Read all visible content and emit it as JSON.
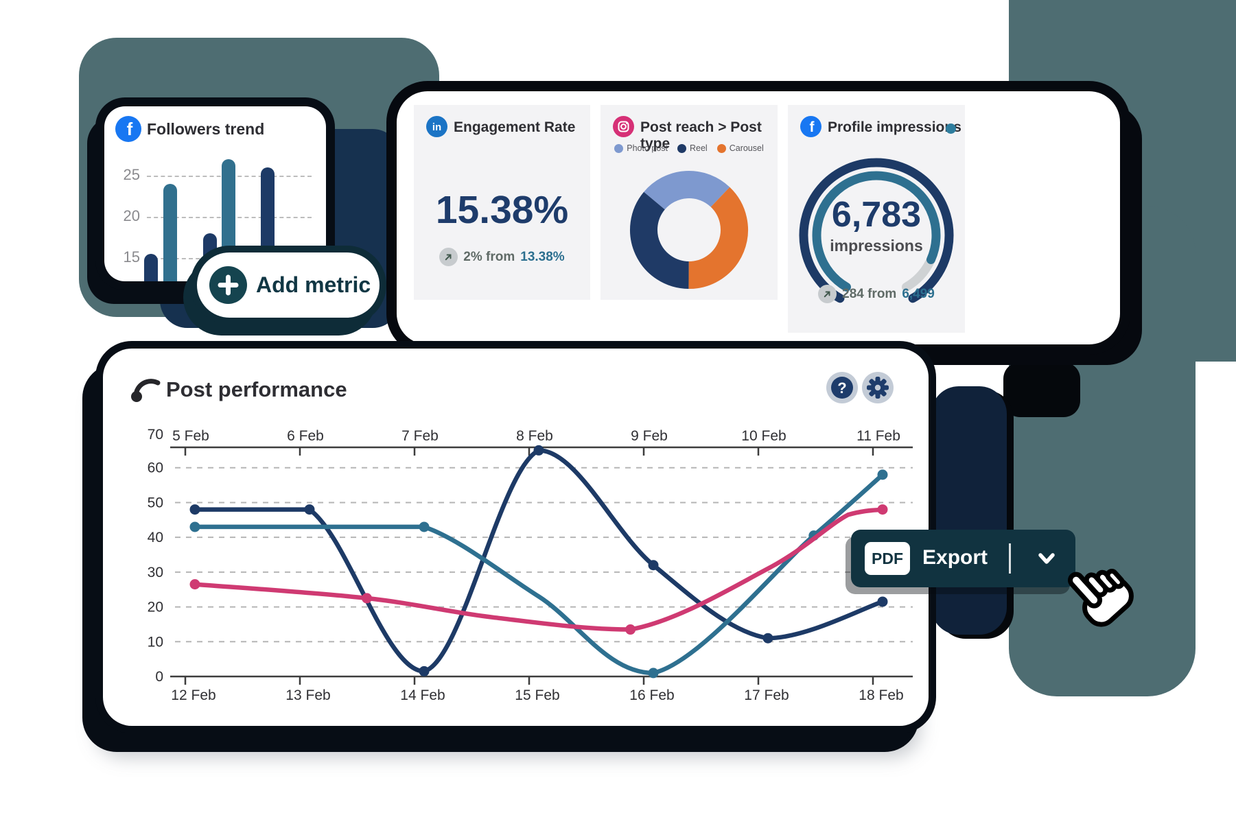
{
  "colors": {
    "slate": "#4e6d72",
    "navy_shape_left": "#16314f",
    "navy_shape_right": "#10223a",
    "shadow_dark": "#070d15",
    "navy_line": "#1d3a66",
    "teal_line": "#2e7090",
    "pink_line": "#cf3a72",
    "accent_navy_text": "#1e3c6b",
    "accent_teal_text": "#2c6f8f",
    "facebook_blue": "#1877f2",
    "linkedin_blue": "#1b74c5",
    "instagram_pink": "#d63076",
    "bar_navy": "#1d3a66",
    "bar_teal": "#31708e",
    "gauge_gray": "#cfd2d4",
    "export_bg": "#113340",
    "pill_shadow": "#0e2c38"
  },
  "followers": {
    "title": "Followers trend",
    "y_labels": [
      "25",
      "20",
      "15"
    ],
    "bars": [
      {
        "value": 15.5,
        "color": "#1d3a66"
      },
      {
        "value": 24,
        "color": "#31708e"
      },
      {
        "value": 18,
        "color": "#1d3a66"
      },
      {
        "value": 27,
        "color": "#31708e"
      },
      {
        "value": 26,
        "color": "#1d3a66"
      }
    ]
  },
  "add_metric": {
    "label": "Add metric"
  },
  "stats_panel": {
    "engagement": {
      "title": "Engagement Rate",
      "value": "15.38%",
      "delta_prefix": "2% from",
      "delta_value": "13.38%"
    },
    "post_reach": {
      "title": "Post reach > Post type",
      "legend": [
        {
          "label": "Photo post",
          "color": "#7e99cf"
        },
        {
          "label": "Reel",
          "color": "#1f3a66"
        },
        {
          "label": "Carousel",
          "color": "#e4742e"
        }
      ],
      "segments": [
        {
          "label": "Photo post",
          "percent": 26,
          "color": "#7e99cf"
        },
        {
          "label": "Carousel",
          "percent": 38,
          "color": "#e4742e"
        },
        {
          "label": "Reel",
          "percent": 36,
          "color": "#1f3a66"
        }
      ]
    },
    "impressions": {
      "title": "Profile impressions",
      "value": "6,783",
      "unit": "impressions",
      "delta_prefix": "284 from",
      "delta_value": "6,499",
      "gauge": {
        "percent": 88
      }
    }
  },
  "performance": {
    "title": "Post performance",
    "top_axis": [
      "5 Feb",
      "6 Feb",
      "7 Feb",
      "8 Feb",
      "9 Feb",
      "10 Feb",
      "11 Feb"
    ],
    "bottom_axis": [
      "12 Feb",
      "13 Feb",
      "14 Feb",
      "15 Feb",
      "16 Feb",
      "17 Feb",
      "18 Feb"
    ],
    "y_ticks": [
      "70",
      "60",
      "50",
      "40",
      "30",
      "20",
      "10",
      "0"
    ],
    "series": [
      {
        "name": "series-navy",
        "color": "#1d3a66",
        "points": [
          [
            0,
            48,
            1
          ],
          [
            1,
            48,
            1
          ],
          [
            2,
            1.5,
            1
          ],
          [
            3,
            65,
            1
          ],
          [
            4,
            32,
            1
          ],
          [
            5,
            11,
            1
          ],
          [
            6,
            21.5,
            1
          ]
        ]
      },
      {
        "name": "series-teal",
        "color": "#2e7090",
        "points": [
          [
            0,
            43,
            1
          ],
          [
            1.2,
            43,
            0
          ],
          [
            2,
            43,
            1
          ],
          [
            3,
            23,
            0
          ],
          [
            4,
            1,
            1
          ],
          [
            5.4,
            40.5,
            1
          ],
          [
            6,
            58,
            1
          ]
        ]
      },
      {
        "name": "series-pink",
        "color": "#cf3a72",
        "points": [
          [
            0,
            26.5,
            1
          ],
          [
            1.5,
            22.5,
            1
          ],
          [
            2.6,
            17,
            0
          ],
          [
            3.8,
            13.5,
            1
          ],
          [
            5,
            31,
            0
          ],
          [
            5.7,
            46.5,
            0
          ],
          [
            6,
            48,
            1
          ]
        ]
      }
    ]
  },
  "export_button": {
    "format": "PDF",
    "label": "Export"
  },
  "chart_data": [
    {
      "type": "bar",
      "title": "Followers trend",
      "categories": [
        "1",
        "2",
        "3",
        "4",
        "5"
      ],
      "values": [
        15.5,
        24,
        18,
        27,
        26
      ],
      "ylabel": "",
      "xlabel": "",
      "ylim": [
        12,
        28
      ],
      "grid": "dashed horizontal at 15/20/25"
    },
    {
      "type": "pie",
      "title": "Post reach > Post type",
      "categories": [
        "Photo post",
        "Carousel",
        "Reel"
      ],
      "values": [
        26,
        38,
        36
      ],
      "legend_position": "top"
    },
    {
      "type": "gauge",
      "title": "Profile impressions",
      "value": 6783,
      "previous": 6499,
      "delta": 284,
      "percent_filled": 88
    },
    {
      "type": "line",
      "title": "Post performance",
      "x_top": [
        "5 Feb",
        "6 Feb",
        "7 Feb",
        "8 Feb",
        "9 Feb",
        "10 Feb",
        "11 Feb"
      ],
      "x_bottom": [
        "12 Feb",
        "13 Feb",
        "14 Feb",
        "15 Feb",
        "16 Feb",
        "17 Feb",
        "18 Feb"
      ],
      "ylim": [
        0,
        70
      ],
      "series": [
        {
          "name": "navy",
          "values_at_days": [
            48,
            48,
            1.5,
            65,
            32,
            11,
            21.5
          ]
        },
        {
          "name": "teal",
          "values_at_days": [
            43,
            43,
            43,
            23,
            1,
            40.5,
            58
          ]
        },
        {
          "name": "pink",
          "values_at_days": [
            26.5,
            24,
            20,
            13.5,
            22,
            44,
            48
          ]
        }
      ]
    },
    {
      "type": "stat",
      "title": "Engagement Rate",
      "value": "15.38%",
      "change": "2% from 13.38%"
    }
  ]
}
